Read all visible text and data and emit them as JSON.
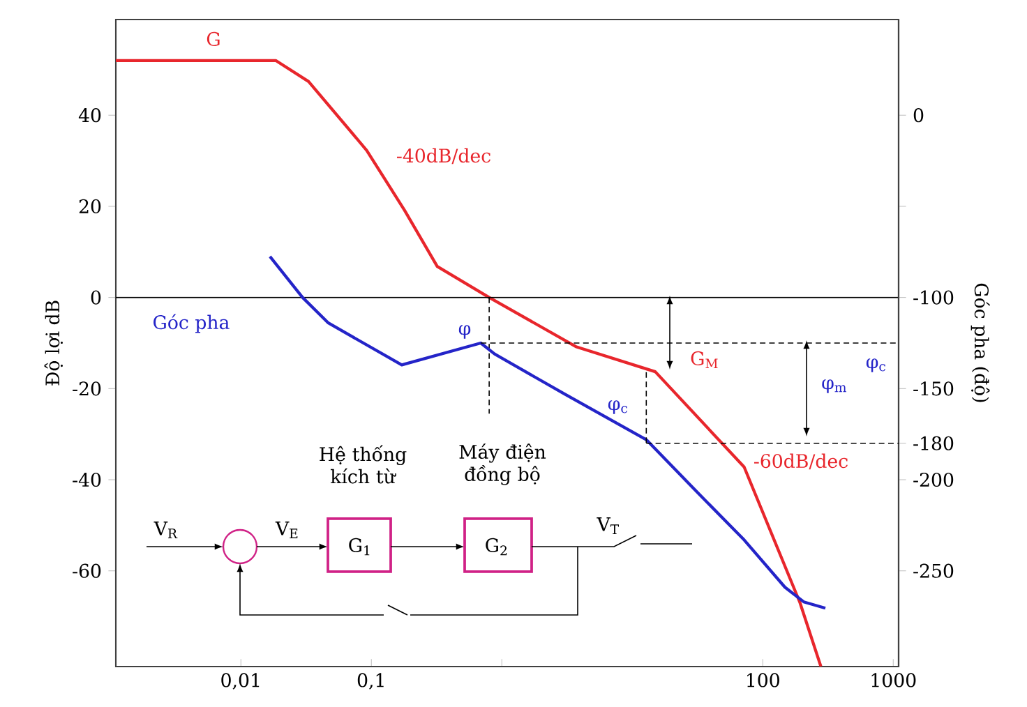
{
  "chart_data": {
    "type": "line",
    "ylabel": "Độ lợi dB",
    "y2label": "Góc pha (độ)",
    "log": "x",
    "xlim": [
      0.0011,
      1100
    ],
    "xticks": [
      {
        "value": 0.01,
        "label": "0,01"
      },
      {
        "value": 0.1,
        "label": "0,1"
      },
      {
        "value": 1,
        "label": null
      },
      100,
      1000
    ],
    "ylim": [
      -81,
      61
    ],
    "yticks": [
      -60,
      -40,
      -20,
      0,
      20,
      40
    ],
    "y2lim": [
      -302.5,
      52.5
    ],
    "y2ticks": [
      -250,
      -200,
      -180,
      -150,
      -100,
      {
        "value": -50,
        "label": null
      },
      0
    ],
    "series": [
      {
        "name": "G",
        "color": "#e8262c",
        "x": [
          0.0011,
          0.0185,
          0.033,
          0.092,
          0.18,
          0.32,
          0.8,
          3.7,
          15,
          72,
          193,
          279
        ],
        "values": [
          52,
          52,
          47.4,
          32.3,
          19.1,
          6.8,
          0,
          -10.8,
          -16.3,
          -37.2,
          -67,
          -81
        ]
      },
      {
        "name": "φ",
        "color": "#2424c8",
        "axis": "y2",
        "x": [
          0.0167,
          0.0297,
          0.0468,
          0.171,
          0.69,
          0.88,
          3.03,
          12.8,
          31.6,
          72,
          148,
          206,
          302
        ],
        "values": [
          -77.5,
          -100,
          -114,
          -137,
          -125,
          -131,
          -153,
          -178,
          -207,
          -233,
          -259,
          -267,
          -270.5
        ]
      },
      {
        "color": "#000000",
        "axis": "y2",
        "line_style": "dashed",
        "x": [
          0.69,
          1100
        ],
        "values": [
          -125,
          -125
        ]
      },
      {
        "color": "#000000",
        "axis": "y2",
        "line_style": "dashed",
        "x": [
          12.8,
          1100
        ],
        "values": [
          -180,
          -180
        ]
      },
      {
        "color": "#000000",
        "line_style": "dashed",
        "x": [
          0.8,
          0.8
        ],
        "values": [
          0,
          -25.5
        ]
      },
      {
        "color": "#000000",
        "axis": "y2",
        "line_style": "dashed",
        "x": [
          12.8,
          12.8
        ],
        "values": [
          -141,
          -180
        ]
      }
    ],
    "ref_lines": [
      {
        "axis": "y",
        "value": 0,
        "color": "#000000"
      }
    ],
    "annotations": [
      "-40dB/dec",
      "Góc pha",
      "G$_{M}$",
      "φ$_{c}$",
      "-60dB/dec",
      "φ$_{m}$",
      "φ$_{c}$",
      "Hệ thống kích từ",
      "Máy điện đồng bộ",
      "V$_{R}$",
      "V$_{E}$",
      "G$_{1}$",
      "G$_{2}$",
      "V$_{T}$"
    ]
  }
}
